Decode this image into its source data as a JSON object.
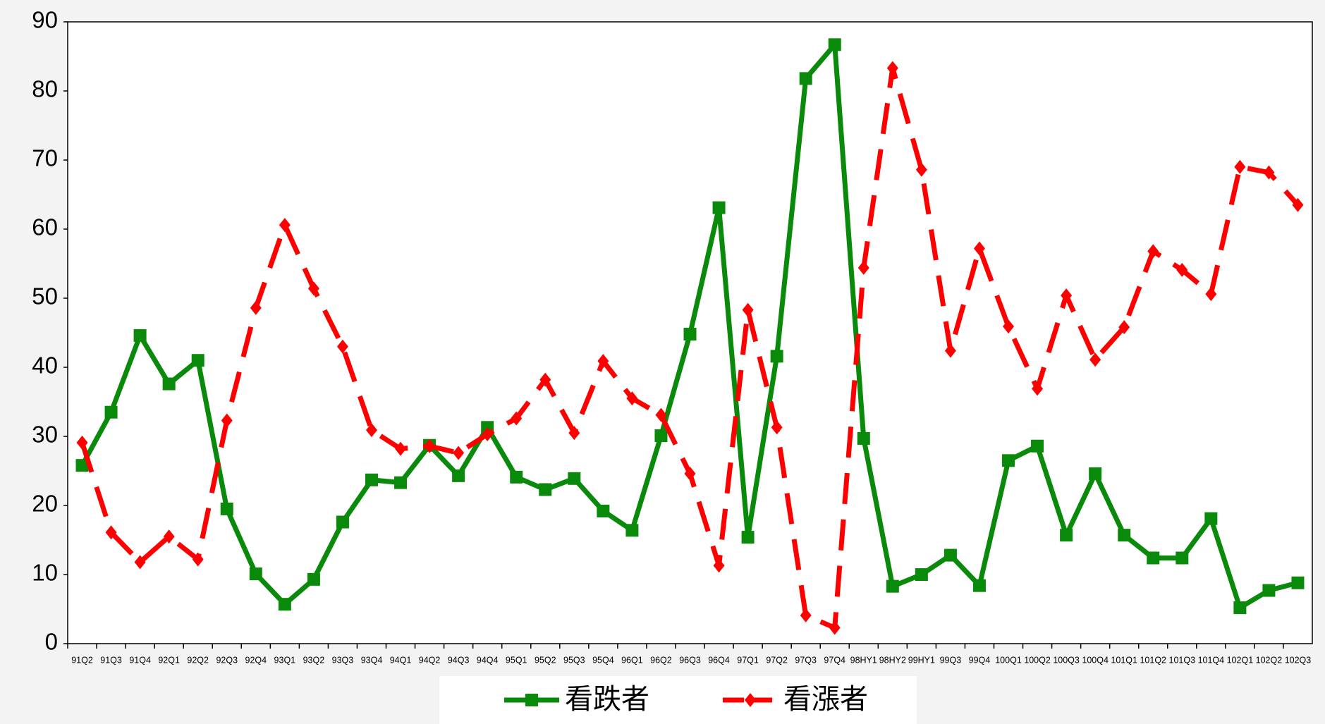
{
  "chart_data": {
    "type": "line",
    "categories": [
      "91Q2",
      "91Q3",
      "91Q4",
      "92Q1",
      "92Q2",
      "92Q3",
      "92Q4",
      "93Q1",
      "93Q2",
      "93Q3",
      "93Q4",
      "94Q1",
      "94Q2",
      "94Q3",
      "94Q4",
      "95Q1",
      "95Q2",
      "95Q3",
      "95Q4",
      "96Q1",
      "96Q2",
      "96Q3",
      "96Q4",
      "97Q1",
      "97Q2",
      "97Q3",
      "97Q4",
      "98HY1",
      "98HY2",
      "99HY1",
      "99Q3",
      "99Q4",
      "100Q1",
      "100Q2",
      "100Q3",
      "100Q4",
      "101Q1",
      "101Q2",
      "101Q3",
      "101Q4",
      "102Q1",
      "102Q2",
      "102Q3"
    ],
    "series": [
      {
        "name": "看跌者",
        "color": "#0a8a0a",
        "marker": "square",
        "dash": false,
        "values": [
          25.8,
          33.5,
          44.6,
          37.6,
          41,
          19.5,
          10.1,
          5.7,
          9.3,
          17.6,
          23.7,
          23.3,
          28.7,
          24.3,
          31.3,
          24.1,
          22.3,
          23.9,
          19.2,
          16.4,
          30.1,
          44.8,
          63.1,
          15.4,
          41.6,
          81.8,
          86.7,
          29.7,
          8.3,
          10,
          12.8,
          8.4,
          26.5,
          28.6,
          15.7,
          24.6,
          15.7,
          12.4,
          12.4,
          18.1,
          5.2,
          7.7,
          8.8
        ]
      },
      {
        "name": "看漲者",
        "color": "#ff0000",
        "marker": "diamond",
        "dash": true,
        "values": [
          29.1,
          16.1,
          11.8,
          15.5,
          12.2,
          32.3,
          48.6,
          60.6,
          51.4,
          43,
          30.9,
          28.2,
          28.6,
          27.6,
          30.3,
          32.6,
          38.2,
          30.5,
          40.9,
          35.5,
          33.1,
          24.6,
          11.3,
          48.3,
          31.3,
          4.1,
          2.3,
          54.4,
          83.3,
          68.6,
          42.4,
          57.2,
          45.9,
          36.9,
          50.4,
          41.1,
          45.8,
          56.8,
          54.1,
          50.6,
          69,
          68.2,
          63.5
        ]
      }
    ],
    "ylim": [
      0,
      90
    ],
    "yticks": [
      0,
      10,
      20,
      30,
      40,
      50,
      60,
      70,
      80,
      90
    ],
    "grid": false
  }
}
